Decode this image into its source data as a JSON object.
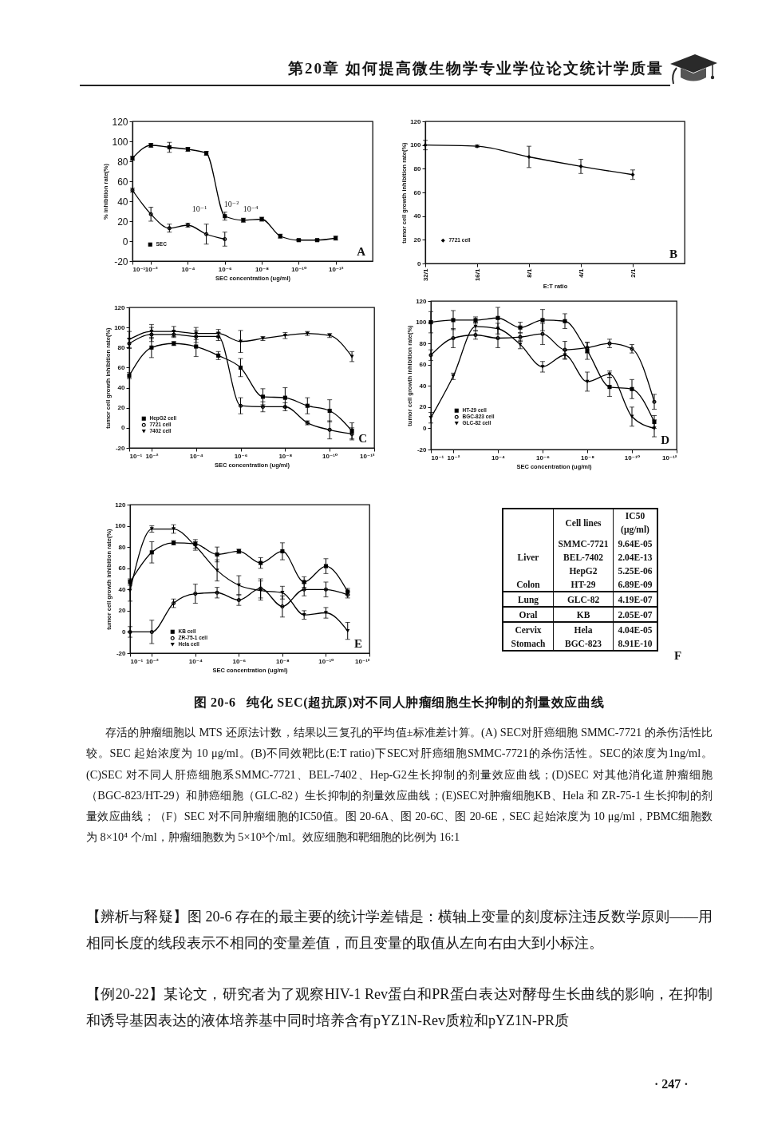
{
  "chart_data": [
    {
      "type": "other",
      "title": "第20章 如何提高微生物学专业学位论文统计学质量"
    },
    {
      "type": "line",
      "log": "x",
      "x": [
        0.1,
        0.01,
        0.001,
        0.0001,
        1e-05,
        1e-06,
        1e-07,
        1e-08,
        1e-09,
        1e-10,
        1e-11,
        1e-12
      ],
      "xlim": [
        0.1,
        1e-14
      ],
      "xticks": [
        {
          "value": 0.1,
          "label": "10⁻¹"
        },
        {
          "value": 0.01,
          "label": "10⁻²"
        },
        {
          "value": 0.0001,
          "label": "10⁻⁴"
        },
        {
          "value": 1e-06,
          "label": "10⁻⁶"
        },
        {
          "value": 1e-08,
          "label": "10⁻⁸"
        },
        {
          "value": 1e-10,
          "label": "10⁻¹⁰"
        },
        {
          "value": 1e-12,
          "label": "10⁻¹²"
        }
      ],
      "ylim": [
        -20,
        120
      ],
      "yticks": [
        -20,
        0,
        20,
        40,
        60,
        80,
        100,
        120
      ],
      "xlabel": "SEC concentration (ug/ml)",
      "ylabel": "% inhibition rate(%)",
      "legend": "bottom left",
      "series": [
        {
          "name": "SEC",
          "color": "#000000",
          "marker": "square",
          "values": [
            83,
            96,
            94,
            92,
            88,
            25,
            21,
            22,
            5,
            1,
            1,
            3
          ],
          "errors": [
            2,
            2,
            5,
            2,
            2,
            4,
            2,
            2,
            2,
            1,
            1,
            2
          ]
        },
        {
          "color": "#000000",
          "marker": "circle",
          "values": [
            51,
            27,
            13,
            16,
            7,
            2,
            null,
            null,
            null,
            null,
            null,
            null
          ],
          "errors": [
            2,
            7,
            4,
            2,
            10,
            7,
            null,
            null,
            null,
            null,
            null,
            null
          ]
        }
      ],
      "annotations": [
        "10⁻¹",
        "10⁻²",
        "10⁻⁴",
        "A"
      ]
    },
    {
      "type": "line",
      "categories": [
        "32/1",
        "16/1",
        "8/1",
        "4/1",
        "2/1"
      ],
      "ylim": [
        0,
        120
      ],
      "yticks": [
        0,
        20,
        40,
        60,
        80,
        100,
        120
      ],
      "xlabel": "E:T ratio",
      "ylabel": "tumor cell growth inhibition rate(%)",
      "legend": "bottom left",
      "series": [
        {
          "name": "7721 cell",
          "color": "#000000",
          "marker": "diamond",
          "values": [
            100,
            99,
            90,
            82,
            75
          ],
          "errors": [
            4,
            1,
            9,
            6,
            4
          ]
        }
      ],
      "annotations": [
        "B"
      ]
    },
    {
      "type": "line",
      "log": "x",
      "x": [
        0.1,
        0.01,
        0.001,
        0.0001,
        1e-05,
        1e-06,
        1e-07,
        1e-08,
        1e-09,
        1e-10,
        1e-11
      ],
      "xlim": [
        0.1,
        1e-12
      ],
      "xticks": [
        {
          "value": 0.1,
          "label": "10⁻¹"
        },
        {
          "value": 0.01,
          "label": "10⁻²"
        },
        {
          "value": 0.0001,
          "label": "10⁻⁴"
        },
        {
          "value": 1e-06,
          "label": "10⁻⁶"
        },
        {
          "value": 1e-08,
          "label": "10⁻⁸"
        },
        {
          "value": 1e-10,
          "label": "10⁻¹⁰"
        },
        {
          "value": 1e-12,
          "label": "10⁻¹²"
        }
      ],
      "ylim": [
        -20,
        120
      ],
      "yticks": [
        -20,
        0,
        20,
        40,
        60,
        80,
        100,
        120
      ],
      "xlabel": "SEC concentration (ug/ml)",
      "ylabel": "tumor cell growth inhibition rate(%)",
      "legend": "bottom left",
      "series": [
        {
          "name": "HepG2 cell",
          "color": "#000000",
          "marker": "square",
          "values": [
            52,
            80,
            84,
            81,
            72,
            60,
            31,
            30,
            22,
            17,
            -3
          ],
          "errors": [
            3,
            10,
            2,
            10,
            4,
            9,
            8,
            10,
            8,
            11,
            8
          ]
        },
        {
          "name": "7721 cell",
          "color": "#000000",
          "marker": "circle",
          "values": [
            84,
            93,
            93,
            91,
            91,
            22,
            21,
            21,
            5,
            -2,
            -6
          ],
          "errors": [
            5,
            7,
            3,
            6,
            4,
            8,
            5,
            4,
            2,
            9,
            6
          ]
        },
        {
          "name": "7402 cell",
          "color": "#000000",
          "marker": "triangle",
          "values": [
            88,
            96,
            96,
            94,
            94,
            86,
            89,
            92,
            94,
            92,
            71
          ],
          "errors": [
            8,
            7,
            5,
            6,
            4,
            11,
            2,
            3,
            2,
            2,
            5
          ]
        }
      ],
      "annotations": [
        "C"
      ]
    },
    {
      "type": "line",
      "log": "x",
      "x": [
        0.1,
        0.01,
        0.001,
        0.0001,
        1e-05,
        1e-06,
        1e-07,
        1e-08,
        1e-09,
        1e-10,
        1e-11
      ],
      "xlim": [
        0.1,
        1e-12
      ],
      "xticks": [
        {
          "value": 0.1,
          "label": "10⁻¹"
        },
        {
          "value": 0.01,
          "label": "10⁻²"
        },
        {
          "value": 0.0001,
          "label": "10⁻⁴"
        },
        {
          "value": 1e-06,
          "label": "10⁻⁶"
        },
        {
          "value": 1e-08,
          "label": "10⁻⁸"
        },
        {
          "value": 1e-10,
          "label": "10⁻¹⁰"
        },
        {
          "value": 1e-12,
          "label": "10⁻¹²"
        }
      ],
      "ylim": [
        -20,
        120
      ],
      "yticks": [
        -20,
        0,
        20,
        40,
        60,
        80,
        100,
        120
      ],
      "xlabel": "SEC concentration (ug/ml)",
      "ylabel": "tumor cell growth inhibition rate(%)",
      "legend": "bottom left",
      "series": [
        {
          "name": "HT-29 cell",
          "color": "#000000",
          "marker": "square",
          "values": [
            100,
            102,
            102,
            104,
            95,
            102,
            101,
            73,
            39,
            37,
            6
          ],
          "errors": [
            10,
            9,
            3,
            10,
            5,
            10,
            7,
            8,
            9,
            9,
            6
          ]
        },
        {
          "name": "BGC-823 cell",
          "color": "#000000",
          "marker": "circle",
          "values": [
            69,
            85,
            88,
            85,
            86,
            89,
            74,
            76,
            80,
            75,
            25
          ],
          "errors": [
            5,
            9,
            4,
            9,
            4,
            10,
            8,
            5,
            4,
            4,
            7
          ]
        },
        {
          "name": "GLC-82 cell",
          "color": "#000000",
          "marker": "triangle",
          "values": [
            10,
            49,
            96,
            94,
            79,
            58,
            69,
            44,
            51,
            11,
            0
          ],
          "errors": [
            5,
            3,
            4,
            5,
            4,
            5,
            4,
            9,
            3,
            9,
            8
          ]
        }
      ],
      "annotations": [
        "D"
      ]
    },
    {
      "type": "line",
      "log": "x",
      "x": [
        0.1,
        0.01,
        0.001,
        0.0001,
        1e-05,
        1e-06,
        1e-07,
        1e-08,
        1e-09,
        1e-10,
        1e-11
      ],
      "xlim": [
        0.1,
        1e-12
      ],
      "xticks": [
        {
          "value": 0.1,
          "label": "10⁻¹"
        },
        {
          "value": 0.01,
          "label": "10⁻²"
        },
        {
          "value": 0.0001,
          "label": "10⁻⁴"
        },
        {
          "value": 1e-06,
          "label": "10⁻⁶"
        },
        {
          "value": 1e-08,
          "label": "10⁻⁸"
        },
        {
          "value": 1e-10,
          "label": "10⁻¹⁰"
        },
        {
          "value": 1e-12,
          "label": "10⁻¹²"
        }
      ],
      "ylim": [
        -20,
        120
      ],
      "yticks": [
        -20,
        0,
        20,
        40,
        60,
        80,
        100,
        120
      ],
      "xlabel": "SEC concentration (ug/ml)",
      "ylabel": "tumor cell growth inhibition rate(%)",
      "legend": "bottom left",
      "series": [
        {
          "name": "KB cell",
          "color": "#000000",
          "marker": "square",
          "values": [
            47,
            75,
            84,
            83,
            73,
            76,
            65,
            76,
            47,
            62,
            38
          ],
          "errors": [
            3,
            10,
            2,
            4,
            7,
            2,
            5,
            8,
            5,
            7,
            3
          ]
        },
        {
          "name": "ZR-75-1 cell",
          "color": "#000000",
          "marker": "circle",
          "values": [
            0,
            0,
            27,
            36,
            37,
            30,
            41,
            24,
            40,
            40,
            35
          ],
          "errors": [
            5,
            11,
            4,
            9,
            5,
            5,
            9,
            10,
            6,
            7,
            3
          ]
        },
        {
          "name": "Hela cell",
          "color": "#000000",
          "marker": "triangle",
          "values": [
            39,
            97,
            97,
            81,
            58,
            44,
            39,
            37,
            16,
            18,
            1
          ],
          "errors": [
            10,
            3,
            4,
            4,
            10,
            9,
            9,
            6,
            4,
            5,
            8
          ]
        }
      ],
      "annotations": [
        "E"
      ]
    },
    {
      "type": "other",
      "categories": [
        "SMMC-7721",
        "BEL-7402",
        "HepG2",
        "HT-29",
        "GLC-82",
        "KB",
        "Hela",
        "BGC-823"
      ],
      "value_labels": [
        "9.64E-05",
        "2.04E-13",
        "5.25E-06",
        "6.89E-09",
        "4.19E-07",
        "2.05E-07",
        "4.04E-05",
        "8.91E-10"
      ],
      "xlabel": "Cell lines",
      "ylabel": "IC50 (μg/ml)",
      "annotations": [
        {
          "text": "Liver",
          "x": "BEL-7402"
        },
        {
          "text": "Colon",
          "x": "HT-29"
        },
        {
          "text": "Lung",
          "x": "GLC-82"
        },
        {
          "text": "Oral",
          "x": "KB"
        },
        {
          "text": "Cervix",
          "x": "Hela"
        },
        {
          "text": "Stomach",
          "x": "BGC-823"
        },
        "F"
      ]
    },
    {
      "type": "other",
      "title": "图 20-6   纯化 SEC(超抗原)对不同人肿瘤细胞生长抑制的剂量效应曲线",
      "annotations": [
        "存活的肿瘤细胞以 MTS 还原法计数，结果以三复孔的平均值±标准差计算。(A) SEC对肝癌细胞 SMMC-7721 的杀伤活性比较。SEC 起始浓度为 10 μg/ml。(B)不同效靶比(E:T ratio)下SEC对肝癌细胞SMMC-7721的杀伤活性。SEC的浓度为1ng/ml。(C)SEC 对不同人肝癌细胞系SMMC-7721、BEL-7402、Hep-G2生长抑制的剂量效应曲线；(D)SEC 对其他消化道肿瘤细胞（BGC-823/HT-29）和肺癌细胞（GLC-82）生长抑制的剂量效应曲线；(E)SEC对肿瘤细胞KB、Hela 和 ZR-75-1 生长抑制的剂量效应曲线；（F）SEC 对不同肿瘤细胞的IC50值。图 20-6A、图 20-6C、图 20-6E，SEC 起始浓度为 10 μg/ml，PBMC细胞数为 8×10⁴ 个/ml，肿瘤细胞数为 5×10³个/ml。效应细胞和靶细胞的比例为 16:1",
        "【辨析与释疑】图 20-6 存在的最主要的统计学差错是：横轴上变量的刻度标注违反数学原则——用相同长度的线段表示不相同的变量差值，而且变量的取值从左向右由大到小标注。",
        "【例20-22】某论文，研究者为了观察HIV-1 Rev蛋白和PR蛋白表达对酵母生长曲线的影响，在抑制和诱导基因表达的液体培养基中同时培养含有pYZ1N-Rev质粒和pYZ1N-PR质",
        "· 247 ·"
      ]
    }
  ]
}
